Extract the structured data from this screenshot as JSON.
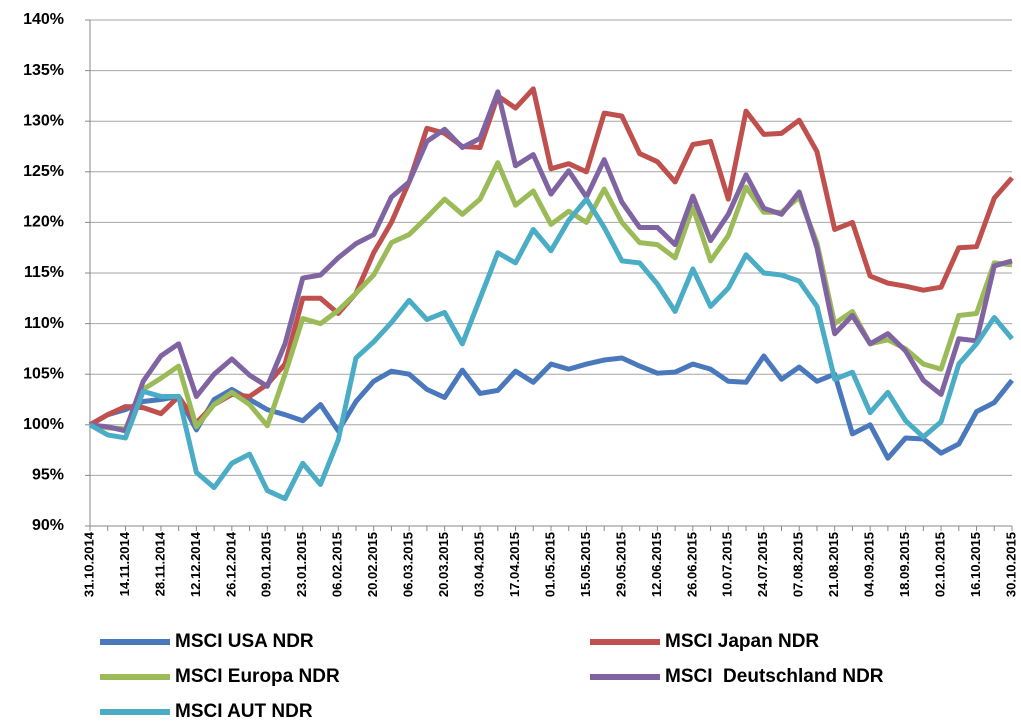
{
  "chart_data": {
    "type": "line",
    "categories": [
      "31.10.2014",
      null,
      "14.11.2014",
      null,
      "28.11.2014",
      null,
      "12.12.2014",
      null,
      "26.12.2014",
      null,
      "09.01.2015",
      null,
      "23.01.2015",
      null,
      "06.02.2015",
      null,
      "20.02.2015",
      null,
      "06.03.2015",
      null,
      "20.03.2015",
      null,
      "03.04.2015",
      null,
      "17.04.2015",
      null,
      "01.05.2015",
      null,
      "15.05.2015",
      null,
      "29.05.2015",
      null,
      "12.06.2015",
      null,
      "26.06.2015",
      null,
      "10.07.2015",
      null,
      "24.07.2015",
      null,
      "07.08.2015",
      null,
      "21.08.2015",
      null,
      "04.09.2015",
      null,
      "18.09.2015",
      null,
      "02.10.2015",
      null,
      "16.10.2015",
      null,
      "30.10.2015"
    ],
    "series": [
      {
        "name": "MSCI USA NDR",
        "color": "#4a78bd",
        "values": [
          100,
          101,
          101.5,
          102.3,
          102.5,
          102.8,
          99.5,
          102.5,
          103.5,
          102.5,
          101.5,
          101,
          100.4,
          102,
          99.4,
          102.3,
          104.3,
          105.3,
          105,
          103.5,
          102.7,
          105.4,
          103.1,
          103.4,
          105.3,
          104.2,
          106,
          105.5,
          106,
          106.4,
          106.6,
          105.8,
          105.1,
          105.2,
          106,
          105.5,
          104.3,
          104.2,
          106.8,
          104.5,
          105.7,
          104.3,
          105,
          99.1,
          100,
          96.7,
          98.7,
          98.6,
          97.2,
          98.1,
          101.3,
          102.2,
          104.4
        ]
      },
      {
        "name": "MSCI Japan NDR",
        "color": "#c0504d",
        "values": [
          100,
          101,
          101.8,
          101.7,
          101.1,
          102.8,
          100.2,
          102,
          103,
          102.8,
          104,
          106,
          112.5,
          112.5,
          111,
          113,
          117,
          120,
          124,
          129.3,
          128.8,
          127.5,
          127.4,
          132.5,
          131.3,
          133.2,
          125.3,
          125.8,
          125,
          130.8,
          130.5,
          126.8,
          126,
          124,
          127.7,
          128,
          122.3,
          131,
          128.7,
          128.8,
          130.1,
          127,
          119.3,
          120,
          114.7,
          114,
          113.7,
          113.3,
          113.6,
          117.5,
          117.6,
          122.4,
          124.4
        ]
      },
      {
        "name": "MSCI Europa NDR",
        "color": "#9bbb59",
        "values": [
          100,
          99.7,
          99.6,
          103.5,
          104.6,
          105.8,
          99.8,
          102,
          103.2,
          102,
          99.9,
          105,
          110.5,
          110,
          111.3,
          113,
          114.8,
          118,
          118.8,
          120.5,
          122.3,
          120.8,
          122.3,
          125.9,
          121.7,
          123.1,
          119.8,
          121.1,
          120,
          123.3,
          120,
          118,
          117.8,
          116.5,
          121.5,
          116.2,
          118.7,
          123.5,
          121,
          121,
          122.5,
          118,
          110,
          111.2,
          108,
          108.4,
          107.5,
          106,
          105.5,
          110.8,
          111,
          116,
          115.8
        ]
      },
      {
        "name": "MSCI  Deutschland NDR",
        "color": "#8064a2",
        "values": [
          100,
          99.8,
          99.4,
          104.3,
          106.8,
          108,
          102.8,
          105,
          106.5,
          104.9,
          103.8,
          108,
          114.5,
          114.8,
          116.5,
          117.9,
          118.8,
          122.5,
          124,
          128,
          129.2,
          127.4,
          128.3,
          132.9,
          125.6,
          126.7,
          122.8,
          125.1,
          122.5,
          126.2,
          122,
          119.5,
          119.5,
          117.8,
          122.6,
          118.2,
          120.8,
          124.7,
          121.4,
          120.8,
          123,
          117.5,
          109,
          110.8,
          108,
          109,
          107.3,
          104.4,
          103,
          108.5,
          108.3,
          115.7,
          116.2
        ]
      },
      {
        "name": "MSCI AUT NDR",
        "color": "#4bacc6",
        "values": [
          100,
          99,
          98.7,
          103.3,
          102.8,
          102.8,
          95.3,
          93.8,
          96.2,
          97.1,
          93.5,
          92.7,
          96.2,
          94.1,
          98.5,
          106.6,
          108.2,
          110.1,
          112.3,
          110.4,
          111.1,
          108,
          112.5,
          117,
          116,
          119.3,
          117.2,
          120.2,
          122.3,
          119.5,
          116.2,
          116,
          113.9,
          111.2,
          115.4,
          111.7,
          113.5,
          116.8,
          115,
          114.8,
          114.2,
          111.7,
          104.5,
          105.2,
          101.2,
          103.2,
          100.4,
          98.8,
          100.3,
          106,
          108,
          110.6,
          108.5
        ]
      }
    ],
    "ylim": [
      90,
      140
    ],
    "yticks": [
      {
        "value": 90,
        "label": "90%"
      },
      {
        "value": 95,
        "label": "95%"
      },
      {
        "value": 100,
        "label": "100%"
      },
      {
        "value": 105,
        "label": "105%"
      },
      {
        "value": 110,
        "label": "110%"
      },
      {
        "value": 115,
        "label": "115%"
      },
      {
        "value": 120,
        "label": "120%"
      },
      {
        "value": 125,
        "label": "125%"
      },
      {
        "value": 130,
        "label": "130%"
      },
      {
        "value": 135,
        "label": "135%"
      },
      {
        "value": 140,
        "label": "140%"
      }
    ],
    "grid": true,
    "legend": "bottom"
  }
}
